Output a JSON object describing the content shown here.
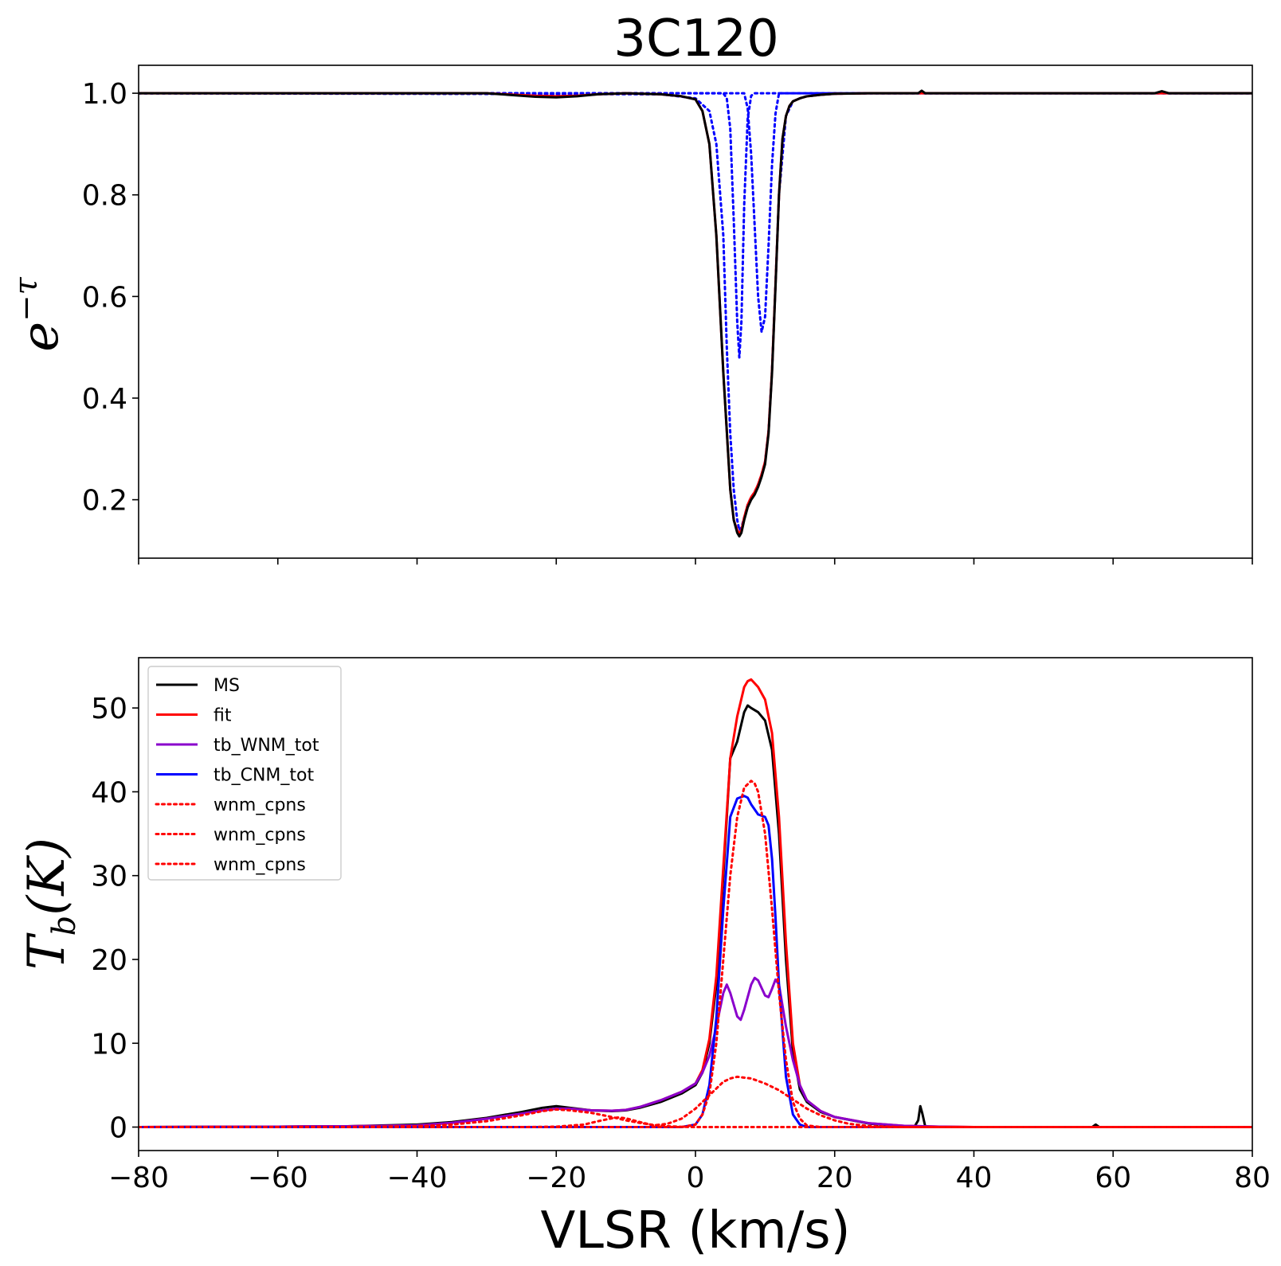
{
  "chart_data": [
    {
      "type": "line",
      "title": "3C120",
      "ylabel": "e",
      "ylabel_sup": "−τ",
      "xlim": [
        -80,
        80
      ],
      "ylim": [
        0.085,
        1.055
      ],
      "xticks": [
        -80,
        -60,
        -40,
        -20,
        0,
        20,
        40,
        60,
        80
      ],
      "yticks": [
        0.2,
        0.4,
        0.6,
        0.8,
        1.0
      ],
      "ytick_labels": [
        "0.2",
        "0.4",
        "0.6",
        "0.8",
        "1.0"
      ],
      "show_xtick_labels": false,
      "grid": false,
      "series": [
        {
          "color": "#000000",
          "style": "solid",
          "x": [
            -80,
            -30,
            -26,
            -23,
            -20,
            -17,
            -14,
            -10,
            -5,
            -2,
            0,
            1,
            2,
            3,
            4,
            5,
            5.5,
            6,
            6.3,
            6.6,
            7,
            7.5,
            8,
            8.5,
            9,
            9.5,
            10,
            10.5,
            11,
            11.5,
            12,
            12.5,
            13,
            13.5,
            14,
            15,
            16,
            18,
            20,
            25,
            30,
            32,
            32.5,
            33,
            34,
            40,
            50,
            60,
            66,
            67,
            68,
            80
          ],
          "y": [
            1.0,
            1.0,
            0.996,
            0.993,
            0.992,
            0.994,
            0.998,
            1.0,
            0.998,
            0.994,
            0.988,
            0.965,
            0.9,
            0.72,
            0.45,
            0.22,
            0.16,
            0.135,
            0.128,
            0.135,
            0.16,
            0.185,
            0.2,
            0.21,
            0.225,
            0.245,
            0.27,
            0.33,
            0.45,
            0.62,
            0.8,
            0.91,
            0.955,
            0.975,
            0.984,
            0.99,
            0.994,
            0.997,
            0.999,
            1.0,
            1.0,
            1.0,
            1.005,
            1.0,
            1.0,
            1.0,
            1.0,
            1.0,
            1.0,
            1.004,
            1.0,
            1.0
          ]
        },
        {
          "color": "#ff0000",
          "style": "solid",
          "x": [
            -80,
            -30,
            -26,
            -23,
            -20,
            -17,
            -14,
            -10,
            -5,
            -2,
            0,
            1,
            2,
            3,
            4,
            5,
            5.5,
            6,
            6.3,
            6.6,
            7,
            7.5,
            8,
            8.5,
            9,
            9.5,
            10,
            10.5,
            11,
            11.5,
            12,
            12.5,
            13,
            13.5,
            14,
            15,
            16,
            18,
            20,
            25,
            30,
            40,
            50,
            60,
            80
          ],
          "y": [
            1.0,
            1.0,
            0.997,
            0.995,
            0.994,
            0.995,
            0.998,
            1.0,
            0.998,
            0.994,
            0.988,
            0.965,
            0.9,
            0.72,
            0.45,
            0.22,
            0.16,
            0.14,
            0.133,
            0.14,
            0.165,
            0.19,
            0.205,
            0.215,
            0.23,
            0.25,
            0.275,
            0.335,
            0.455,
            0.625,
            0.8,
            0.91,
            0.955,
            0.975,
            0.984,
            0.99,
            0.994,
            0.997,
            0.999,
            1.0,
            1.0,
            1.0,
            1.0,
            1.0,
            1.0
          ]
        },
        {
          "color": "#0000ff",
          "style": "dotted",
          "x": [
            -80,
            -5,
            0,
            2,
            3,
            4,
            4.5,
            5,
            5.5,
            6,
            6.3,
            6.6,
            7,
            7.5,
            8,
            8.5,
            9,
            9.5,
            10,
            10.5,
            11,
            11.5,
            12,
            13,
            14,
            15,
            16,
            18,
            20,
            25,
            30,
            80
          ],
          "y": [
            1.0,
            0.998,
            0.99,
            0.965,
            0.9,
            0.72,
            0.5,
            0.33,
            0.22,
            0.16,
            0.14,
            0.145,
            0.165,
            0.19,
            0.205,
            0.215,
            0.23,
            0.25,
            0.275,
            0.335,
            0.455,
            0.625,
            0.8,
            0.955,
            0.984,
            0.99,
            0.994,
            0.997,
            0.999,
            1.0,
            1.0,
            1.0
          ]
        },
        {
          "color": "#0000ff",
          "style": "dotted",
          "x": [
            -80,
            4,
            4.5,
            5,
            5.5,
            6,
            6.3,
            6.6,
            7,
            7.5,
            8,
            8.5,
            80
          ],
          "y": [
            1.0,
            1.0,
            0.99,
            0.93,
            0.75,
            0.55,
            0.48,
            0.55,
            0.78,
            0.95,
            0.995,
            1.0,
            1.0
          ]
        },
        {
          "color": "#0000ff",
          "style": "dotted",
          "x": [
            -80,
            7,
            7.5,
            8,
            8.5,
            9,
            9.5,
            10,
            10.5,
            11,
            11.5,
            12,
            80
          ],
          "y": [
            1.0,
            1.0,
            0.97,
            0.88,
            0.74,
            0.6,
            0.53,
            0.56,
            0.7,
            0.86,
            0.96,
            1.0,
            1.0
          ]
        }
      ]
    },
    {
      "type": "line",
      "xlabel": "VLSR (km/s)",
      "ylabel": "T",
      "ylabel_sub": "b",
      "ylabel_rest": "(K)",
      "xlim": [
        -80,
        80
      ],
      "ylim": [
        -2.8,
        56
      ],
      "xticks": [
        -80,
        -60,
        -40,
        -20,
        0,
        20,
        40,
        60,
        80
      ],
      "xtick_labels": [
        "−80",
        "−60",
        "−40",
        "−20",
        "0",
        "20",
        "40",
        "60",
        "80"
      ],
      "yticks": [
        0,
        10,
        20,
        30,
        40,
        50
      ],
      "ytick_labels": [
        "0",
        "10",
        "20",
        "30",
        "40",
        "50"
      ],
      "grid": false,
      "legend_position": "upper-left",
      "series": [
        {
          "name": "MS",
          "color": "#000000",
          "style": "solid",
          "x": [
            -80,
            -60,
            -50,
            -40,
            -35,
            -30,
            -25,
            -22,
            -20,
            -18,
            -15,
            -12,
            -10,
            -8,
            -5,
            -2,
            0,
            1,
            2,
            3,
            4,
            5,
            6,
            7,
            7.5,
            8,
            9,
            10,
            11,
            12,
            13,
            14,
            15,
            16,
            18,
            20,
            25,
            30,
            31.5,
            32,
            32.3,
            32.6,
            33,
            34,
            40,
            50,
            57,
            57.5,
            58,
            60,
            80
          ],
          "y": [
            0,
            0.05,
            0.1,
            0.3,
            0.6,
            1.1,
            1.8,
            2.3,
            2.5,
            2.3,
            2.0,
            1.9,
            2.0,
            2.3,
            3.0,
            4.0,
            5.0,
            6.5,
            10,
            17,
            30,
            44,
            46,
            49.5,
            50.3,
            50,
            49.5,
            48.5,
            45,
            35,
            20,
            9,
            4.5,
            3.0,
            1.8,
            1.2,
            0.4,
            0.1,
            0.1,
            0.8,
            2.5,
            1.6,
            0.1,
            0,
            0,
            0,
            0,
            0.3,
            0,
            0,
            0
          ]
        },
        {
          "name": "fit",
          "color": "#ff0000",
          "style": "solid",
          "x": [
            -80,
            -60,
            -50,
            -40,
            -35,
            -30,
            -25,
            -22,
            -20,
            -18,
            -15,
            -12,
            -10,
            -8,
            -5,
            -2,
            0,
            1,
            2,
            3,
            4,
            5,
            6,
            7,
            7.5,
            8,
            9,
            10,
            11,
            12,
            13,
            14,
            15,
            16,
            18,
            20,
            25,
            30,
            35,
            40,
            80
          ],
          "y": [
            0,
            0.05,
            0.1,
            0.2,
            0.5,
            1.0,
            1.6,
            2.0,
            2.2,
            2.2,
            2.0,
            1.95,
            2.05,
            2.4,
            3.2,
            4.2,
            5.2,
            6.8,
            10.5,
            18,
            31,
            44,
            49,
            52.5,
            53.2,
            53.4,
            52.5,
            51,
            47,
            37,
            22,
            10,
            5,
            3.2,
            1.9,
            1.2,
            0.45,
            0.15,
            0.05,
            0,
            0
          ]
        },
        {
          "name": "tb_WNM_tot",
          "color": "#8a00cc",
          "style": "solid",
          "x": [
            -80,
            -60,
            -50,
            -40,
            -35,
            -30,
            -25,
            -22,
            -20,
            -18,
            -15,
            -12,
            -10,
            -8,
            -5,
            -2,
            0,
            1,
            2,
            3,
            4,
            4.5,
            5,
            6,
            6.5,
            7,
            8,
            8.5,
            9,
            10,
            10.5,
            11,
            11.5,
            12,
            13,
            14,
            15,
            16,
            18,
            20,
            25,
            30,
            35,
            40,
            80
          ],
          "y": [
            0,
            0.05,
            0.1,
            0.2,
            0.5,
            1.0,
            1.6,
            2.0,
            2.2,
            2.2,
            2.0,
            1.95,
            2.05,
            2.4,
            3.2,
            4.2,
            5.2,
            6.5,
            8.5,
            12,
            16,
            17,
            16,
            13.2,
            12.8,
            14,
            17,
            17.8,
            17.5,
            15.7,
            15.5,
            16.5,
            17.6,
            17,
            12,
            8,
            5,
            3.2,
            1.9,
            1.2,
            0.45,
            0.15,
            0.05,
            0,
            0
          ]
        },
        {
          "name": "tb_CNM_tot",
          "color": "#0000ff",
          "style": "solid",
          "x": [
            -80,
            -2,
            0,
            1,
            2,
            3,
            4,
            5,
            6,
            7,
            7.5,
            8,
            9,
            10,
            10.5,
            11,
            11.5,
            12,
            13,
            14,
            15,
            16,
            18,
            80
          ],
          "y": [
            0,
            0,
            0.3,
            1.5,
            5,
            13,
            26,
            37,
            39.2,
            39.5,
            39.3,
            38.5,
            37.3,
            37.0,
            36,
            32,
            25,
            17,
            6,
            1.5,
            0.3,
            0,
            0,
            0
          ]
        },
        {
          "name": "wnm_cpns",
          "color": "#ff0000",
          "style": "dotted",
          "x": [
            -80,
            -50,
            -40,
            -35,
            -30,
            -25,
            -22,
            -20,
            -18,
            -15,
            -12,
            -10,
            -8,
            -6,
            -4,
            -2,
            0,
            80
          ],
          "y": [
            0,
            0.02,
            0.1,
            0.3,
            0.7,
            1.4,
            1.9,
            2.1,
            2.0,
            1.7,
            1.2,
            0.8,
            0.5,
            0.25,
            0.1,
            0.03,
            0,
            0
          ]
        },
        {
          "name": "wnm_cpns",
          "color": "#ff0000",
          "style": "dotted",
          "x": [
            -80,
            -25,
            -20,
            -16,
            -14,
            -12,
            -11,
            -10,
            -8,
            -6,
            -4,
            -2,
            0,
            2,
            4,
            5,
            6,
            8,
            10,
            12,
            14,
            16,
            18,
            20,
            22,
            25,
            30,
            80
          ],
          "y": [
            0,
            0,
            0.05,
            0.3,
            0.7,
            1.05,
            1.15,
            1.05,
            0.6,
            0.2,
            0.4,
            1.0,
            2.2,
            3.8,
            5.4,
            5.8,
            6.0,
            5.8,
            5.2,
            4.4,
            3.3,
            2.2,
            1.4,
            0.8,
            0.4,
            0.1,
            0,
            0
          ]
        },
        {
          "name": "wnm_cpns",
          "color": "#ff0000",
          "style": "dotted",
          "x": [
            -80,
            -2,
            0,
            1,
            2,
            3,
            4,
            5,
            6,
            7,
            8,
            8.5,
            9,
            10,
            11,
            12,
            13,
            14,
            15,
            16,
            18,
            80
          ],
          "y": [
            0,
            0,
            0.3,
            1.5,
            4,
            10,
            20,
            30,
            37,
            40.5,
            41.3,
            41,
            40,
            35,
            26,
            16,
            8,
            3,
            1,
            0.2,
            0,
            0
          ]
        }
      ]
    }
  ]
}
